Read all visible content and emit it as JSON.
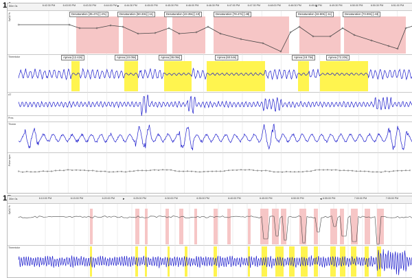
{
  "panels": [
    {
      "id": "1A",
      "label": "1A",
      "time_unit": "50m 0s",
      "time_ticks": [
        "6:42:30 PM",
        "6:43:00 PM",
        "6:43:30 PM",
        "6:44:00 PM",
        "6:44:30 PM",
        "6:45:00 PM",
        "6:45:30 PM",
        "6:46:00 PM",
        "6:46:30 PM",
        "6:47:00 PM",
        "6:47:30 PM",
        "6:48:00 PM",
        "6:48:30 PM",
        "6:49:00 PM",
        "6:49:30 PM",
        "6:50:00 PM",
        "6:50:30 PM",
        "6:51:00 PM"
      ],
      "tracks": [
        "SpO2 %",
        "Thermistor",
        "AT",
        "Pres",
        "Thorax",
        "",
        "Pulse  bpm"
      ],
      "desaturations": [
        "Desaturation [35.47s] [-4%]",
        "Desaturation [50.33s] [-11]",
        "Desaturation [43.35s] [-10]",
        "Desaturation [78.47s] [-48]",
        "Desaturation [32.80s] [-11]",
        "Desaturation [73.00s] [-43]"
      ],
      "apneas": [
        "Apnea [12.42s]",
        "Apnea [10.05s]",
        "Apnea [36.05s]",
        "Apnea [60.54s]",
        "Apnea [18.75s]",
        "Apnea [72.20s]"
      ]
    },
    {
      "id": "1B",
      "label": "1B",
      "time_unit": "30m 0s",
      "time_ticks": [
        "6:10:00 PM",
        "6:15:00 PM",
        "6:20:00 PM",
        "6:25:00 PM",
        "6:30:00 PM",
        "6:35:00 PM",
        "6:40:00 PM",
        "6:45:00 PM",
        "6:50:00 PM",
        "6:55:00 PM",
        "7:00:00 PM",
        "7:05:00 PM"
      ],
      "tracks": [
        "SpO2 %",
        "Thermistor"
      ]
    }
  ],
  "colors": {
    "desat": "#f6c6c6",
    "apnea": "#fff44f",
    "signal": "#1a1acc",
    "spo2": "#444444"
  }
}
